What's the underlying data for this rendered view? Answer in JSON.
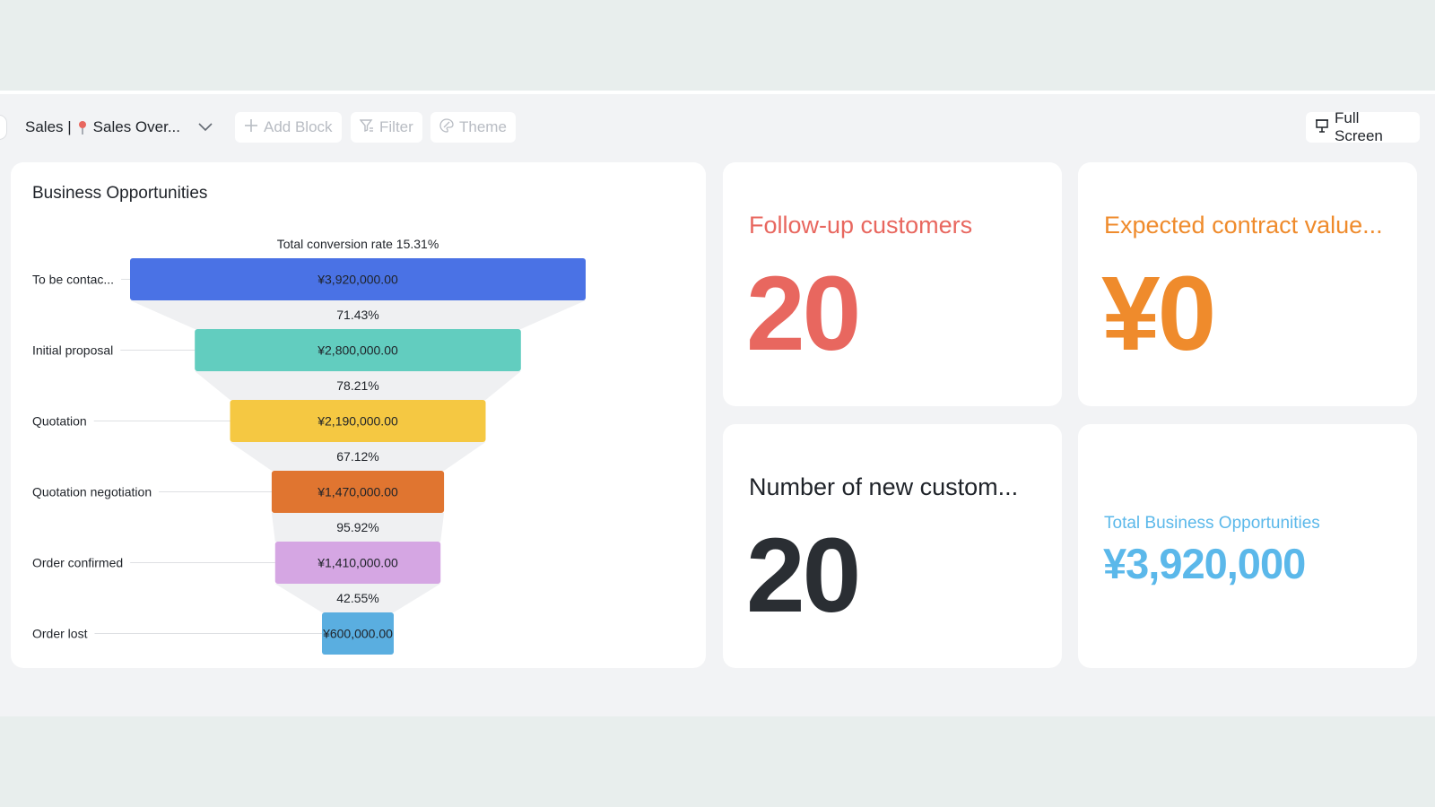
{
  "toolbar": {
    "dashboard_name": "Sales |",
    "dashboard_subname": "Sales Over...",
    "pin_icon": "map-pin-icon",
    "add_block": "Add Block",
    "filter": "Filter",
    "theme": "Theme",
    "full_screen": "Full Screen"
  },
  "funnel_card": {
    "title": "Business Opportunities"
  },
  "chart_data": {
    "type": "funnel",
    "title": "Business Opportunities",
    "total_label": "Total conversion rate 15.31%",
    "stages": [
      {
        "label": "To be contac...",
        "value": 3920000,
        "value_label": "¥3,920,000.00",
        "color": "#4a72e5"
      },
      {
        "label": "Initial proposal",
        "value": 2800000,
        "value_label": "¥2,800,000.00",
        "color": "#62cdbf"
      },
      {
        "label": "Quotation",
        "value": 2190000,
        "value_label": "¥2,190,000.00",
        "color": "#f5c842"
      },
      {
        "label": "Quotation negotiation",
        "value": 1470000,
        "value_label": "¥1,470,000.00",
        "color": "#e07530"
      },
      {
        "label": "Order confirmed",
        "value": 1410000,
        "value_label": "¥1,410,000.00",
        "color": "#d5a6e3"
      },
      {
        "label": "Order lost",
        "value": 600000,
        "value_label": "¥600,000.00",
        "color": "#5aaee0"
      }
    ],
    "conversion_rates": [
      "71.43%",
      "78.21%",
      "67.12%",
      "95.92%",
      "42.55%"
    ]
  },
  "metrics": {
    "follow_up": {
      "label": "Follow-up customers",
      "value": "20",
      "color": "#e8675f"
    },
    "contract": {
      "label": "Expected contract value...",
      "value": "¥0",
      "color": "#ef8b2c"
    },
    "new_customers": {
      "label": "Number of new custom...",
      "value": "20",
      "color": "#2a2e33"
    },
    "total_opps": {
      "label": "Total Business Opportunities",
      "value": "¥3,920,000",
      "color": "#5bb8ea"
    }
  }
}
